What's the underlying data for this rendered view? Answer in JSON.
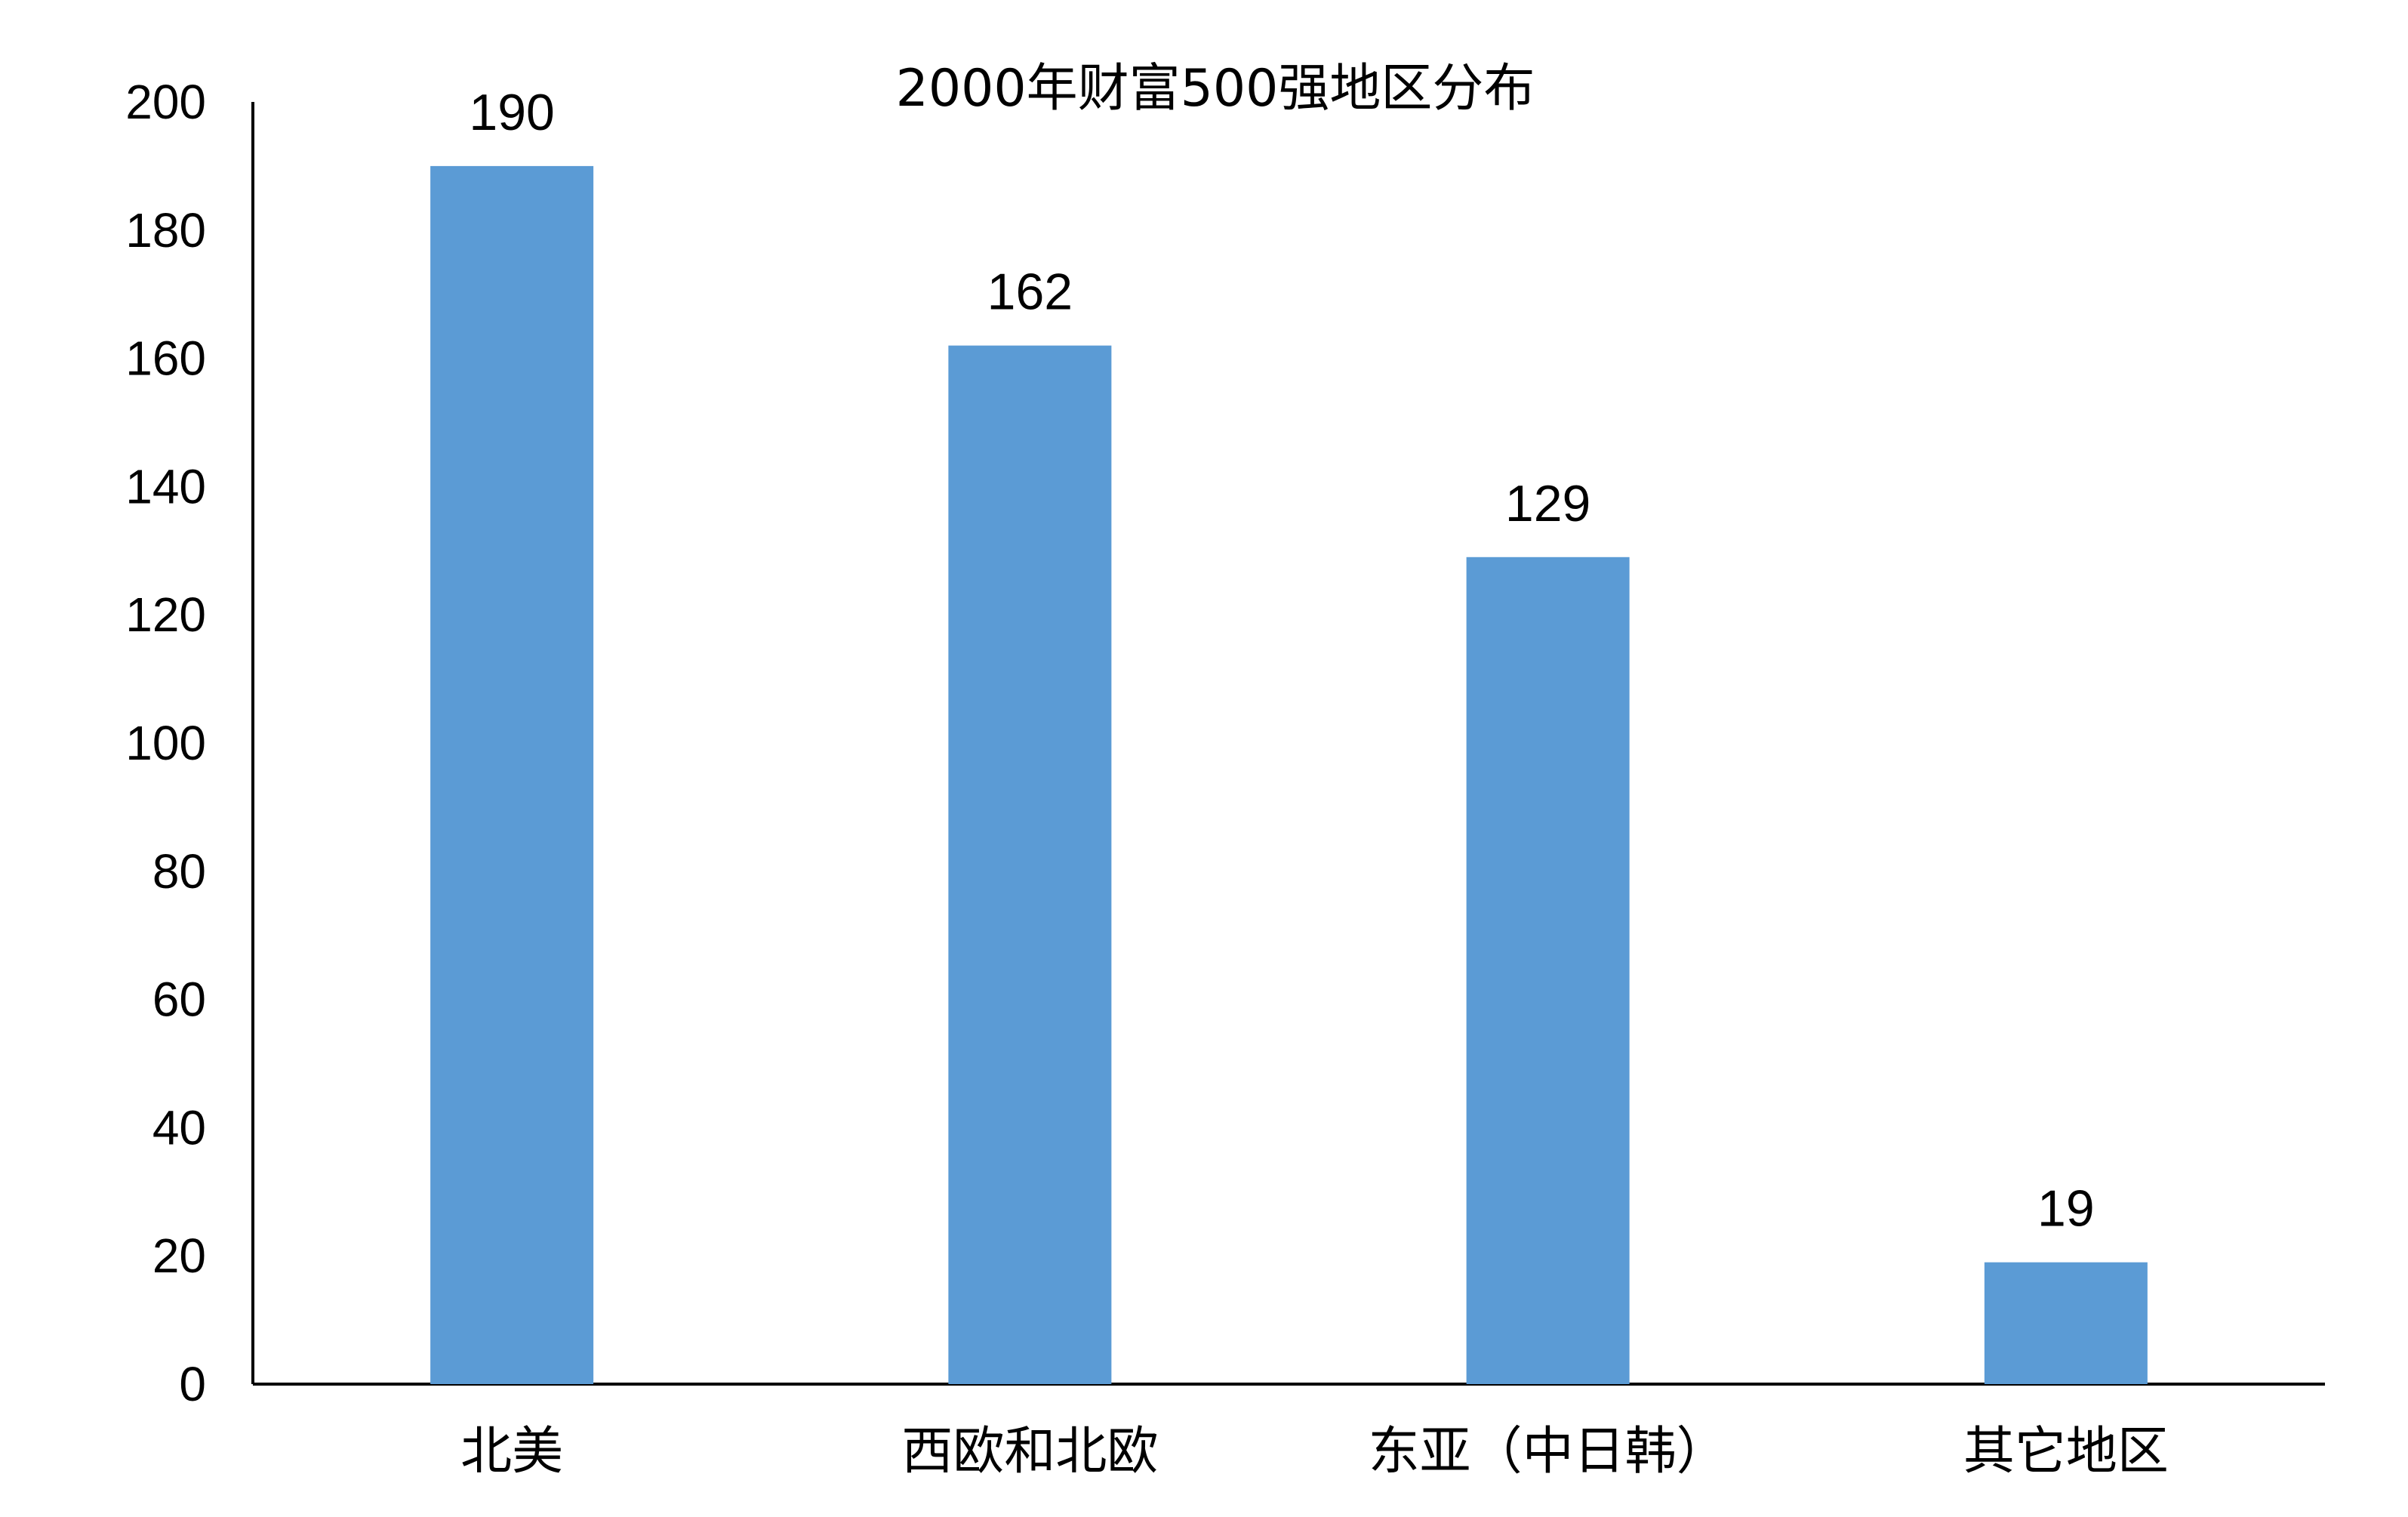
{
  "chart_data": {
    "type": "bar",
    "title": "2000年财富500强地区分布",
    "categories": [
      "北美",
      "西欧和北欧",
      "东亚（中日韩）",
      "其它地区"
    ],
    "series": [
      {
        "values": [
          190,
          162,
          129,
          19
        ],
        "color": "#5b9bd5"
      }
    ],
    "yticks": [
      "0",
      "20",
      "40",
      "60",
      "80",
      "100",
      "120",
      "140",
      "160",
      "180",
      "200"
    ],
    "ylim": [
      0,
      200
    ],
    "xlabel": "",
    "ylabel": "",
    "grid": false,
    "legend": "none",
    "data_labels": true
  }
}
